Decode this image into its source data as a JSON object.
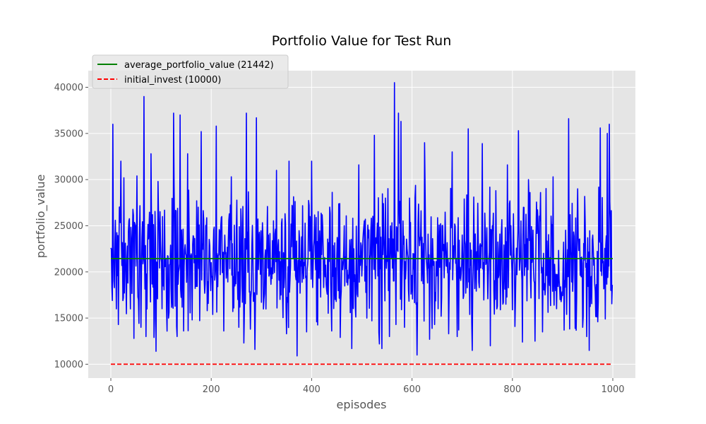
{
  "chart_data": {
    "type": "line",
    "title": "Portfolio Value for Test Run",
    "xlabel": "episodes",
    "ylabel": "portfolio_value",
    "xlim": [
      -45,
      1045
    ],
    "ylim": [
      8500,
      41800
    ],
    "x_ticks": [
      0,
      200,
      400,
      600,
      800,
      1000
    ],
    "y_ticks": [
      10000,
      15000,
      20000,
      25000,
      30000,
      35000,
      40000
    ],
    "grid": true,
    "legend_position": "top-left",
    "episodes": 1000,
    "series": [
      {
        "name": "average_portfolio_value (21442)",
        "kind": "constant",
        "y": 21442,
        "color": "#008000",
        "dash": "solid"
      },
      {
        "name": "initial_invest (10000)",
        "kind": "constant",
        "y": 10000,
        "color": "#ff0000",
        "dash": "dashed"
      },
      {
        "name": "portfolio_value",
        "kind": "noise",
        "color": "#0000ff",
        "dash": "solid",
        "mean": 21442,
        "min": 10900,
        "max": 40500,
        "peaks": [
          [
            0,
            22600
          ],
          [
            4,
            36000
          ],
          [
            11,
            16000
          ],
          [
            15,
            14300
          ],
          [
            20,
            32000
          ],
          [
            26,
            30200
          ],
          [
            34,
            18800
          ],
          [
            46,
            12800
          ],
          [
            52,
            30400
          ],
          [
            60,
            14000
          ],
          [
            66,
            39000
          ],
          [
            70,
            13000
          ],
          [
            80,
            32800
          ],
          [
            86,
            12900
          ],
          [
            90,
            11400
          ],
          [
            94,
            29800
          ],
          [
            103,
            26000
          ],
          [
            115,
            15000
          ],
          [
            125,
            37200
          ],
          [
            132,
            13000
          ],
          [
            138,
            37000
          ],
          [
            145,
            13600
          ],
          [
            153,
            32800
          ],
          [
            162,
            14800
          ],
          [
            180,
            35200
          ],
          [
            192,
            15800
          ],
          [
            200,
            21000
          ],
          [
            210,
            35800
          ],
          [
            225,
            13600
          ],
          [
            240,
            30300
          ],
          [
            255,
            14000
          ],
          [
            265,
            12300
          ],
          [
            270,
            37200
          ],
          [
            278,
            13800
          ],
          [
            287,
            11600
          ],
          [
            290,
            36700
          ],
          [
            305,
            17000
          ],
          [
            330,
            31000
          ],
          [
            350,
            13300
          ],
          [
            355,
            32000
          ],
          [
            365,
            22000
          ],
          [
            371,
            10900
          ],
          [
            380,
            23800
          ],
          [
            390,
            13500
          ],
          [
            400,
            32000
          ],
          [
            410,
            14600
          ],
          [
            430,
            18000
          ],
          [
            440,
            13600
          ],
          [
            457,
            12900
          ],
          [
            465,
            25000
          ],
          [
            480,
            11700
          ],
          [
            494,
            31600
          ],
          [
            510,
            15000
          ],
          [
            520,
            14700
          ],
          [
            525,
            34800
          ],
          [
            535,
            12200
          ],
          [
            540,
            11700
          ],
          [
            547,
            28000
          ],
          [
            555,
            13000
          ],
          [
            565,
            40500
          ],
          [
            568,
            14300
          ],
          [
            573,
            37200
          ],
          [
            578,
            36300
          ],
          [
            585,
            14000
          ],
          [
            595,
            28000
          ],
          [
            610,
            11000
          ],
          [
            625,
            34000
          ],
          [
            635,
            12700
          ],
          [
            645,
            14300
          ],
          [
            660,
            25000
          ],
          [
            673,
            13300
          ],
          [
            680,
            33000
          ],
          [
            690,
            13000
          ],
          [
            700,
            24000
          ],
          [
            712,
            35500
          ],
          [
            720,
            11500
          ],
          [
            740,
            33900
          ],
          [
            756,
            12000
          ],
          [
            760,
            25000
          ],
          [
            776,
            15900
          ],
          [
            790,
            31600
          ],
          [
            800,
            15900
          ],
          [
            812,
            35300
          ],
          [
            820,
            12400
          ],
          [
            832,
            30000
          ],
          [
            845,
            12500
          ],
          [
            856,
            28600
          ],
          [
            860,
            13500
          ],
          [
            870,
            21000
          ],
          [
            881,
            30300
          ],
          [
            895,
            17000
          ],
          [
            903,
            13700
          ],
          [
            912,
            36600
          ],
          [
            920,
            17900
          ],
          [
            930,
            29000
          ],
          [
            940,
            14000
          ],
          [
            948,
            13000
          ],
          [
            953,
            11500
          ],
          [
            970,
            14600
          ],
          [
            975,
            35600
          ],
          [
            980,
            21000
          ],
          [
            985,
            14900
          ],
          [
            989,
            35000
          ],
          [
            993,
            36000
          ],
          [
            996,
            18000
          ],
          [
            999,
            18600
          ]
        ]
      }
    ]
  }
}
